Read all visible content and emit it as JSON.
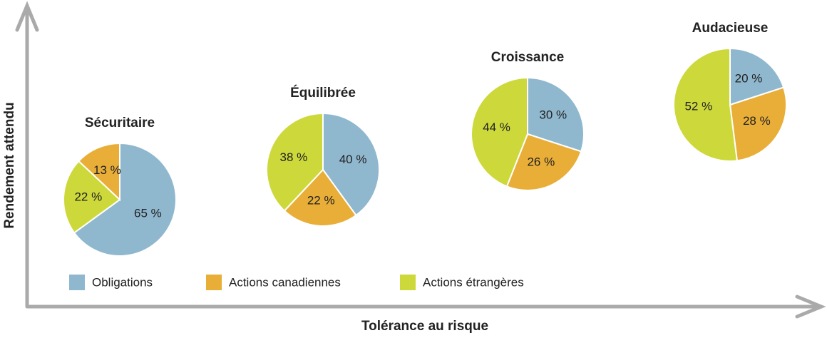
{
  "chart_data": [
    {
      "type": "pie",
      "title": "Sécuritaire",
      "categories": [
        "Obligations",
        "Actions étrangères",
        "Actions canadiennes"
      ],
      "colors": [
        "#8fb8cf",
        "#cdd93a",
        "#e9ae37"
      ],
      "values": [
        65,
        22,
        13
      ],
      "value_labels": [
        "65 %",
        "22 %",
        "13 %"
      ]
    },
    {
      "type": "pie",
      "title": "Équilibrée",
      "categories": [
        "Obligations",
        "Actions canadiennes",
        "Actions étrangères"
      ],
      "colors": [
        "#8fb8cf",
        "#e9ae37",
        "#cdd93a"
      ],
      "values": [
        40,
        22,
        38
      ],
      "value_labels": [
        "40 %",
        "22 %",
        "38 %"
      ]
    },
    {
      "type": "pie",
      "title": "Croissance",
      "categories": [
        "Obligations",
        "Actions canadiennes",
        "Actions étrangères"
      ],
      "colors": [
        "#8fb8cf",
        "#e9ae37",
        "#cdd93a"
      ],
      "values": [
        30,
        26,
        44
      ],
      "value_labels": [
        "30 %",
        "26 %",
        "44 %"
      ]
    },
    {
      "type": "pie",
      "title": "Audacieuse",
      "categories": [
        "Obligations",
        "Actions canadiennes",
        "Actions étrangères"
      ],
      "colors": [
        "#8fb8cf",
        "#e9ae37",
        "#cdd93a"
      ],
      "values": [
        20,
        28,
        52
      ],
      "value_labels": [
        "20 %",
        "28 %",
        "52 %"
      ]
    }
  ],
  "x_label": "Tolérance au risque",
  "y_label": "Rendement attendu"
}
